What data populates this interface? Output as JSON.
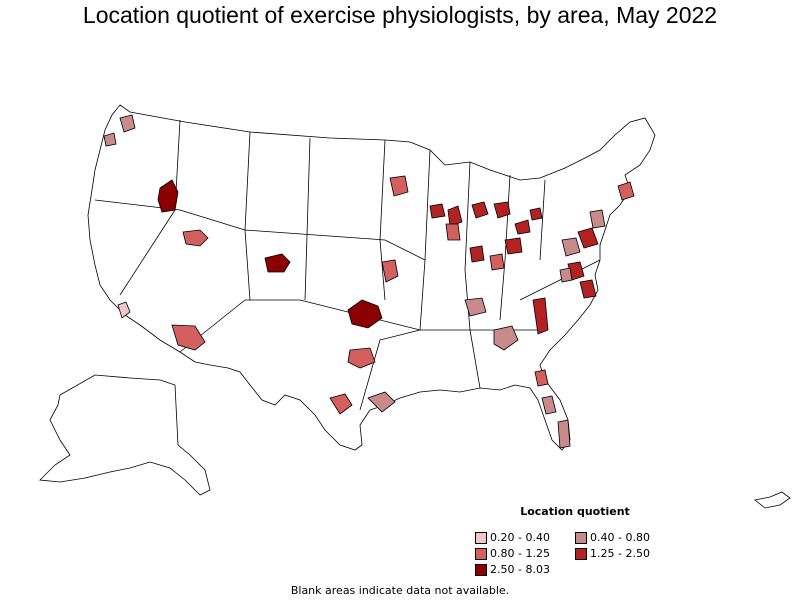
{
  "title": "Location quotient of exercise physiologists, by area, May 2022",
  "legend": {
    "title": "Location quotient",
    "items": [
      {
        "label": "0.20 - 0.40",
        "color": "#f4c7c7"
      },
      {
        "label": "0.40 - 0.80",
        "color": "#c88a8a"
      },
      {
        "label": "0.80 - 1.25",
        "color": "#d35f5f"
      },
      {
        "label": "1.25 - 2.50",
        "color": "#b22222"
      },
      {
        "label": "2.50 - 8.03",
        "color": "#8b0000"
      }
    ]
  },
  "footnote": "Blank areas indicate data not available.",
  "colors": {
    "border": "#000000",
    "blank": "#ffffff"
  }
}
